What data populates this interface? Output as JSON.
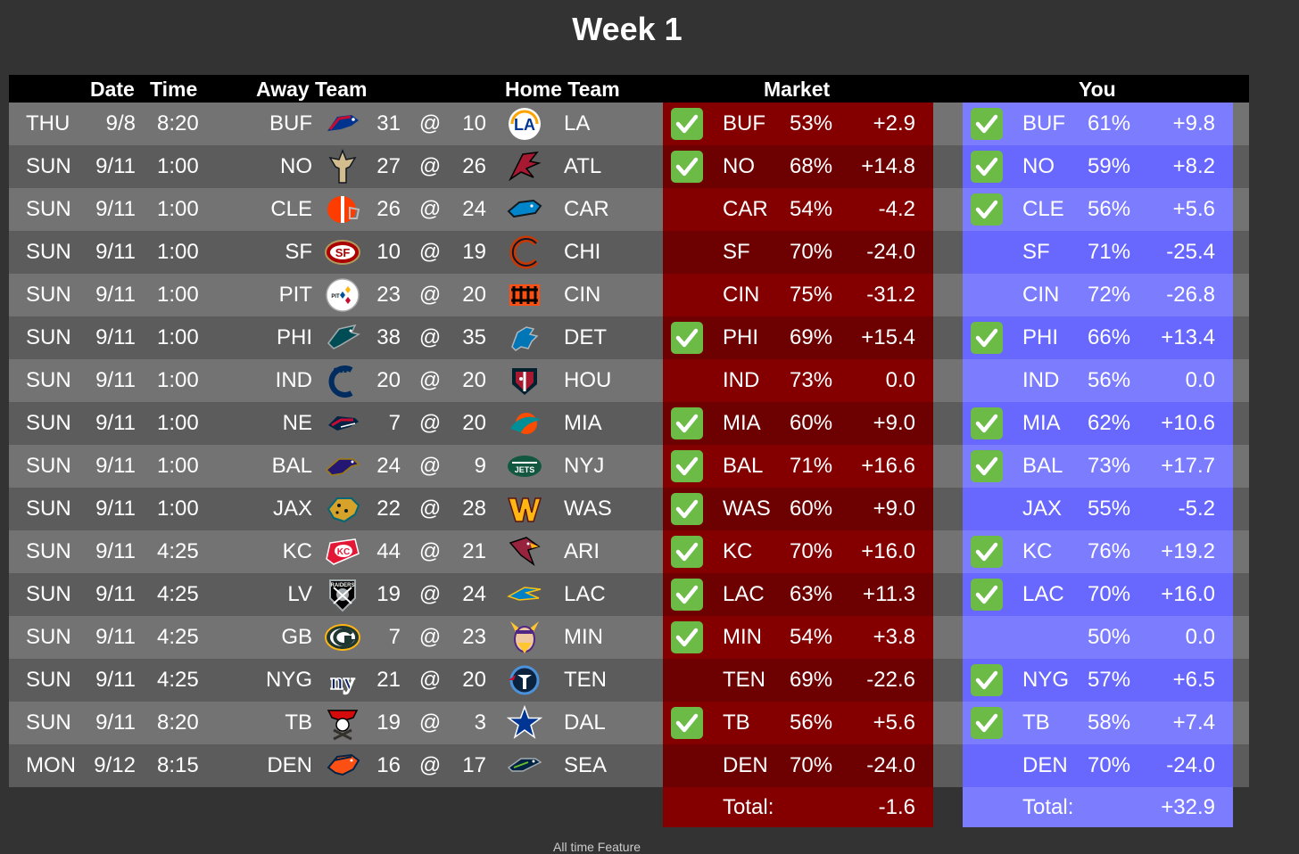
{
  "page": {
    "title": "Week 1",
    "footer": "All time      Feature"
  },
  "headers": {
    "date": "Date",
    "time": "Time",
    "away": "Away Team",
    "home": "Home Team",
    "market": "Market",
    "you": "You"
  },
  "colors": {
    "row_light": "#737373",
    "row_dark": "#5c5c5c",
    "market_light": "#840000",
    "market_dark": "#6d0000",
    "you_light": "#7c7cff",
    "you_dark": "#6868ff",
    "check_green": "#6cbb47"
  },
  "games": [
    {
      "day": "THU",
      "date": "9/8",
      "time": "8:20",
      "away": "BUF",
      "away_score": "31",
      "at": "@",
      "home_score": "10",
      "home": "LA",
      "away_logo": "bills-logo-icon",
      "home_logo": "rams-logo-icon",
      "market": {
        "check": true,
        "team": "BUF",
        "pct": "53%",
        "val": "+2.9"
      },
      "you": {
        "check": true,
        "team": "BUF",
        "pct": "61%",
        "val": "+9.8"
      }
    },
    {
      "day": "SUN",
      "date": "9/11",
      "time": "1:00",
      "away": "NO",
      "away_score": "27",
      "at": "@",
      "home_score": "26",
      "home": "ATL",
      "away_logo": "saints-logo-icon",
      "home_logo": "falcons-logo-icon",
      "market": {
        "check": true,
        "team": "NO",
        "pct": "68%",
        "val": "+14.8"
      },
      "you": {
        "check": true,
        "team": "NO",
        "pct": "59%",
        "val": "+8.2"
      }
    },
    {
      "day": "SUN",
      "date": "9/11",
      "time": "1:00",
      "away": "CLE",
      "away_score": "26",
      "at": "@",
      "home_score": "24",
      "home": "CAR",
      "away_logo": "browns-logo-icon",
      "home_logo": "panthers-logo-icon",
      "market": {
        "check": false,
        "team": "CAR",
        "pct": "54%",
        "val": "-4.2"
      },
      "you": {
        "check": true,
        "team": "CLE",
        "pct": "56%",
        "val": "+5.6"
      }
    },
    {
      "day": "SUN",
      "date": "9/11",
      "time": "1:00",
      "away": "SF",
      "away_score": "10",
      "at": "@",
      "home_score": "19",
      "home": "CHI",
      "away_logo": "49ers-logo-icon",
      "home_logo": "bears-logo-icon",
      "market": {
        "check": false,
        "team": "SF",
        "pct": "70%",
        "val": "-24.0"
      },
      "you": {
        "check": false,
        "team": "SF",
        "pct": "71%",
        "val": "-25.4"
      }
    },
    {
      "day": "SUN",
      "date": "9/11",
      "time": "1:00",
      "away": "PIT",
      "away_score": "23",
      "at": "@",
      "home_score": "20",
      "home": "CIN",
      "away_logo": "steelers-logo-icon",
      "home_logo": "bengals-logo-icon",
      "market": {
        "check": false,
        "team": "CIN",
        "pct": "75%",
        "val": "-31.2"
      },
      "you": {
        "check": false,
        "team": "CIN",
        "pct": "72%",
        "val": "-26.8"
      }
    },
    {
      "day": "SUN",
      "date": "9/11",
      "time": "1:00",
      "away": "PHI",
      "away_score": "38",
      "at": "@",
      "home_score": "35",
      "home": "DET",
      "away_logo": "eagles-logo-icon",
      "home_logo": "lions-logo-icon",
      "market": {
        "check": true,
        "team": "PHI",
        "pct": "69%",
        "val": "+15.4"
      },
      "you": {
        "check": true,
        "team": "PHI",
        "pct": "66%",
        "val": "+13.4"
      }
    },
    {
      "day": "SUN",
      "date": "9/11",
      "time": "1:00",
      "away": "IND",
      "away_score": "20",
      "at": "@",
      "home_score": "20",
      "home": "HOU",
      "away_logo": "colts-logo-icon",
      "home_logo": "texans-logo-icon",
      "market": {
        "check": false,
        "team": "IND",
        "pct": "73%",
        "val": "0.0"
      },
      "you": {
        "check": false,
        "team": "IND",
        "pct": "56%",
        "val": "0.0"
      }
    },
    {
      "day": "SUN",
      "date": "9/11",
      "time": "1:00",
      "away": "NE",
      "away_score": "7",
      "at": "@",
      "home_score": "20",
      "home": "MIA",
      "away_logo": "patriots-logo-icon",
      "home_logo": "dolphins-logo-icon",
      "market": {
        "check": true,
        "team": "MIA",
        "pct": "60%",
        "val": "+9.0"
      },
      "you": {
        "check": true,
        "team": "MIA",
        "pct": "62%",
        "val": "+10.6"
      }
    },
    {
      "day": "SUN",
      "date": "9/11",
      "time": "1:00",
      "away": "BAL",
      "away_score": "24",
      "at": "@",
      "home_score": "9",
      "home": "NYJ",
      "away_logo": "ravens-logo-icon",
      "home_logo": "jets-logo-icon",
      "market": {
        "check": true,
        "team": "BAL",
        "pct": "71%",
        "val": "+16.6"
      },
      "you": {
        "check": true,
        "team": "BAL",
        "pct": "73%",
        "val": "+17.7"
      }
    },
    {
      "day": "SUN",
      "date": "9/11",
      "time": "1:00",
      "away": "JAX",
      "away_score": "22",
      "at": "@",
      "home_score": "28",
      "home": "WAS",
      "away_logo": "jaguars-logo-icon",
      "home_logo": "commanders-logo-icon",
      "market": {
        "check": true,
        "team": "WAS",
        "pct": "60%",
        "val": "+9.0"
      },
      "you": {
        "check": false,
        "team": "JAX",
        "pct": "55%",
        "val": "-5.2"
      }
    },
    {
      "day": "SUN",
      "date": "9/11",
      "time": "4:25",
      "away": "KC",
      "away_score": "44",
      "at": "@",
      "home_score": "21",
      "home": "ARI",
      "away_logo": "chiefs-logo-icon",
      "home_logo": "cardinals-logo-icon",
      "market": {
        "check": true,
        "team": "KC",
        "pct": "70%",
        "val": "+16.0"
      },
      "you": {
        "check": true,
        "team": "KC",
        "pct": "76%",
        "val": "+19.2"
      }
    },
    {
      "day": "SUN",
      "date": "9/11",
      "time": "4:25",
      "away": "LV",
      "away_score": "19",
      "at": "@",
      "home_score": "24",
      "home": "LAC",
      "away_logo": "raiders-logo-icon",
      "home_logo": "chargers-logo-icon",
      "market": {
        "check": true,
        "team": "LAC",
        "pct": "63%",
        "val": "+11.3"
      },
      "you": {
        "check": true,
        "team": "LAC",
        "pct": "70%",
        "val": "+16.0"
      }
    },
    {
      "day": "SUN",
      "date": "9/11",
      "time": "4:25",
      "away": "GB",
      "away_score": "7",
      "at": "@",
      "home_score": "23",
      "home": "MIN",
      "away_logo": "packers-logo-icon",
      "home_logo": "vikings-logo-icon",
      "market": {
        "check": true,
        "team": "MIN",
        "pct": "54%",
        "val": "+3.8"
      },
      "you": {
        "check": false,
        "team": "",
        "pct": "50%",
        "val": "0.0"
      }
    },
    {
      "day": "SUN",
      "date": "9/11",
      "time": "4:25",
      "away": "NYG",
      "away_score": "21",
      "at": "@",
      "home_score": "20",
      "home": "TEN",
      "away_logo": "giants-logo-icon",
      "home_logo": "titans-logo-icon",
      "market": {
        "check": false,
        "team": "TEN",
        "pct": "69%",
        "val": "-22.6"
      },
      "you": {
        "check": true,
        "team": "NYG",
        "pct": "57%",
        "val": "+6.5"
      }
    },
    {
      "day": "SUN",
      "date": "9/11",
      "time": "8:20",
      "away": "TB",
      "away_score": "19",
      "at": "@",
      "home_score": "3",
      "home": "DAL",
      "away_logo": "buccaneers-logo-icon",
      "home_logo": "cowboys-logo-icon",
      "market": {
        "check": true,
        "team": "TB",
        "pct": "56%",
        "val": "+5.6"
      },
      "you": {
        "check": true,
        "team": "TB",
        "pct": "58%",
        "val": "+7.4"
      }
    },
    {
      "day": "MON",
      "date": "9/12",
      "time": "8:15",
      "away": "DEN",
      "away_score": "16",
      "at": "@",
      "home_score": "17",
      "home": "SEA",
      "away_logo": "broncos-logo-icon",
      "home_logo": "seahawks-logo-icon",
      "market": {
        "check": false,
        "team": "DEN",
        "pct": "70%",
        "val": "-24.0"
      },
      "you": {
        "check": false,
        "team": "DEN",
        "pct": "70%",
        "val": "-24.0"
      }
    }
  ],
  "totals": {
    "market": {
      "label": "Total:",
      "val": "-1.6"
    },
    "you": {
      "label": "Total:",
      "val": "+32.9"
    }
  }
}
